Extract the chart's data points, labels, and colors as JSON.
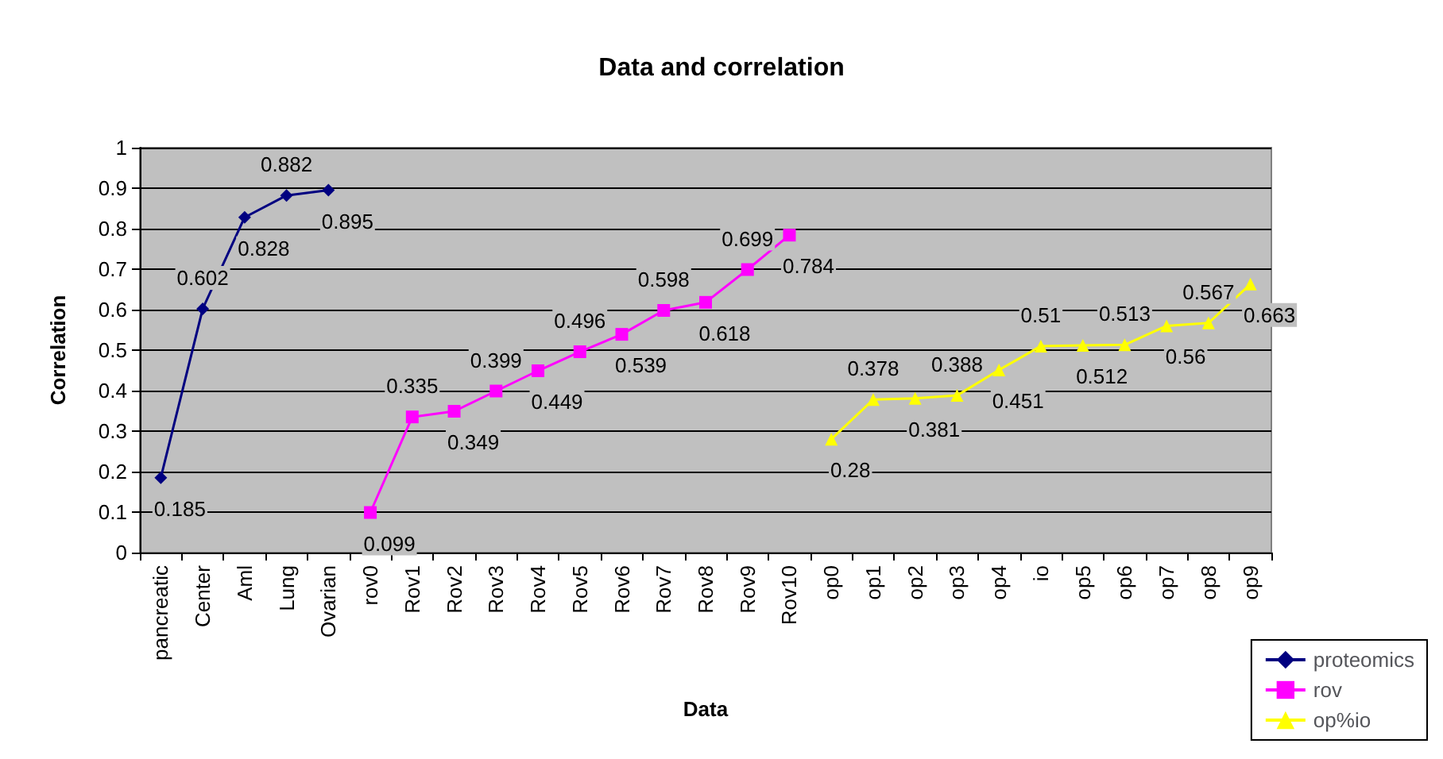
{
  "chart_data": {
    "type": "line",
    "title": "Data and correlation",
    "xlabel": "Data",
    "ylabel": "Correlation",
    "categories": [
      "pancreatic",
      "Center",
      "Aml",
      "Lung",
      "Ovarian",
      "rov0",
      "Rov1",
      "Rov2",
      "Rov3",
      "Rov4",
      "Rov5",
      "Rov6",
      "Rov7",
      "Rov8",
      "Rov9",
      "Rov10",
      "op0",
      "op1",
      "op2",
      "op3",
      "op4",
      "io",
      "op5",
      "op6",
      "op7",
      "op8",
      "op9"
    ],
    "series": [
      {
        "name": "proteomics",
        "color": "#000080",
        "marker": "diamond",
        "values": [
          0.185,
          0.602,
          0.828,
          0.882,
          0.895,
          null,
          null,
          null,
          null,
          null,
          null,
          null,
          null,
          null,
          null,
          null,
          null,
          null,
          null,
          null,
          null,
          null,
          null,
          null,
          null,
          null,
          null
        ]
      },
      {
        "name": "rov",
        "color": "#ff00ff",
        "marker": "square",
        "values": [
          null,
          null,
          null,
          null,
          null,
          0.099,
          0.335,
          0.349,
          0.399,
          0.449,
          0.496,
          0.539,
          0.598,
          0.618,
          0.699,
          0.784,
          null,
          null,
          null,
          null,
          null,
          null,
          null,
          null,
          null,
          null,
          null
        ]
      },
      {
        "name": "op%io",
        "color": "#ffff00",
        "marker": "triangle",
        "values": [
          null,
          null,
          null,
          null,
          null,
          null,
          null,
          null,
          null,
          null,
          null,
          null,
          null,
          null,
          null,
          null,
          0.28,
          0.378,
          0.381,
          0.388,
          0.451,
          0.51,
          0.512,
          0.513,
          0.56,
          0.567,
          0.663
        ]
      }
    ],
    "ylim": [
      0,
      1
    ],
    "yticks": [
      0,
      0.1,
      0.2,
      0.3,
      0.4,
      0.5,
      0.6,
      0.7,
      0.8,
      0.9,
      1
    ],
    "grid": "y",
    "legend": "bottom right",
    "data_labels": true,
    "line_style": "solid"
  }
}
